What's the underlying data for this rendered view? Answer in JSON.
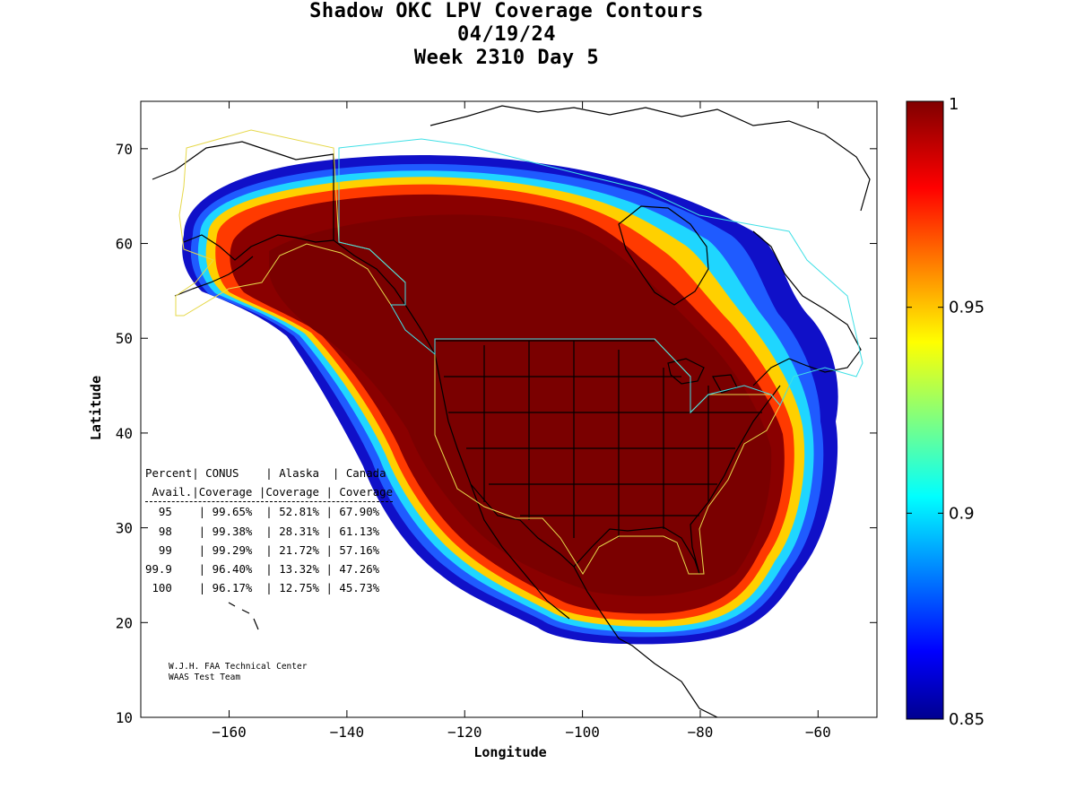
{
  "header": {
    "title_line1": "Shadow OKC LPV Coverage Contours",
    "title_line2": "04/19/24",
    "title_line3": "Week 2310 Day 5"
  },
  "axes": {
    "xlabel": "Longitude",
    "ylabel": "Latitude",
    "x_ticks": [
      -160,
      -140,
      -120,
      -100,
      -80,
      -60
    ],
    "y_ticks": [
      10,
      20,
      30,
      40,
      50,
      60,
      70
    ],
    "xlim": [
      -175,
      -50
    ],
    "ylim": [
      10,
      75
    ]
  },
  "colorbar": {
    "ticks": [
      "1",
      "0.95",
      "0.9",
      "0.85"
    ],
    "range": [
      0.85,
      1
    ],
    "colormap": "jet"
  },
  "stats_table": {
    "header1": [
      "Percent",
      "CONUS",
      "Alaska",
      "Canada"
    ],
    "header2": [
      "Avail.",
      "Coverage",
      "Coverage",
      "Coverage"
    ],
    "rows": [
      [
        "95",
        "99.65%",
        "52.81%",
        "67.90%"
      ],
      [
        "98",
        "99.38%",
        "28.31%",
        "61.13%"
      ],
      [
        "99",
        "99.29%",
        "21.72%",
        "57.16%"
      ],
      [
        "99.9",
        "96.40%",
        "13.32%",
        "47.26%"
      ],
      [
        "100",
        "96.17%",
        "12.75%",
        "45.73%"
      ]
    ]
  },
  "credit": {
    "line1": "W.J.H. FAA Technical Center",
    "line2": "WAAS Test Team"
  },
  "colors": {
    "coverage_max": "#800000",
    "coverage_min": "#00008f",
    "conus_outline": "#e6d84a",
    "alaska_outline": "#e6d84a",
    "canada_outline": "#40e0e6"
  }
}
